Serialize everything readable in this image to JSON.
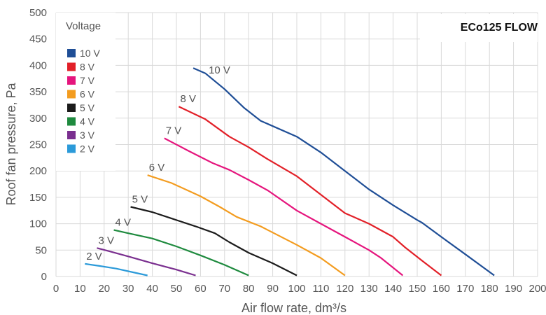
{
  "chart_data": {
    "type": "line",
    "title": "ECo125 FLOW",
    "xlabel": "Air flow rate, dm³/s",
    "ylabel": "Roof fan pressure, Pa",
    "xlim": [
      0,
      200
    ],
    "ylim": [
      0,
      500
    ],
    "xticks": [
      "0",
      "10",
      "20",
      "30",
      "40",
      "50",
      "60",
      "70",
      "80",
      "90",
      "100",
      "110",
      "120",
      "130",
      "140",
      "150",
      "160",
      "170",
      "180",
      "190",
      "200"
    ],
    "yticks": [
      "0",
      "50",
      "100",
      "150",
      "200",
      "250",
      "300",
      "350",
      "400",
      "450",
      "500"
    ],
    "grid": true,
    "legend": {
      "title": "Voltage",
      "placement": "top-left",
      "entries": [
        "10 V",
        "8 V",
        "7 V",
        "6 V",
        "5 V",
        "4 V",
        "3 V",
        "2 V"
      ]
    },
    "series": [
      {
        "name": "10 V",
        "color": "#1f4e96",
        "label": "10 V",
        "points": [
          [
            57,
            395
          ],
          [
            62,
            385
          ],
          [
            70,
            355
          ],
          [
            78,
            320
          ],
          [
            85,
            295
          ],
          [
            100,
            265
          ],
          [
            110,
            235
          ],
          [
            120,
            200
          ],
          [
            130,
            165
          ],
          [
            140,
            135
          ],
          [
            150,
            107
          ],
          [
            152,
            102
          ],
          [
            160,
            75
          ],
          [
            170,
            42
          ],
          [
            182,
            2
          ]
        ]
      },
      {
        "name": "8 V",
        "color": "#e22028",
        "label": "8 V",
        "points": [
          [
            51,
            322
          ],
          [
            62,
            298
          ],
          [
            72,
            265
          ],
          [
            80,
            245
          ],
          [
            88,
            222
          ],
          [
            100,
            190
          ],
          [
            110,
            155
          ],
          [
            120,
            120
          ],
          [
            130,
            100
          ],
          [
            140,
            75
          ],
          [
            145,
            55
          ],
          [
            152,
            30
          ],
          [
            160,
            2
          ]
        ]
      },
      {
        "name": "7 V",
        "color": "#e5157d",
        "label": "7 V",
        "points": [
          [
            45,
            262
          ],
          [
            55,
            238
          ],
          [
            65,
            215
          ],
          [
            72,
            202
          ],
          [
            80,
            183
          ],
          [
            88,
            163
          ],
          [
            100,
            125
          ],
          [
            110,
            100
          ],
          [
            120,
            75
          ],
          [
            130,
            50
          ],
          [
            135,
            35
          ],
          [
            144,
            2
          ]
        ]
      },
      {
        "name": "6 V",
        "color": "#f39c1f",
        "label": "6 V",
        "points": [
          [
            38,
            192
          ],
          [
            48,
            177
          ],
          [
            60,
            152
          ],
          [
            68,
            132
          ],
          [
            75,
            113
          ],
          [
            85,
            95
          ],
          [
            100,
            60
          ],
          [
            110,
            35
          ],
          [
            120,
            2
          ]
        ]
      },
      {
        "name": "5 V",
        "color": "#1b1b1b",
        "label": "5 V",
        "points": [
          [
            31,
            132
          ],
          [
            40,
            122
          ],
          [
            48,
            110
          ],
          [
            58,
            95
          ],
          [
            66,
            82
          ],
          [
            72,
            65
          ],
          [
            80,
            45
          ],
          [
            90,
            25
          ],
          [
            100,
            2
          ]
        ]
      },
      {
        "name": "4 V",
        "color": "#1e8a3e",
        "label": "4 V",
        "points": [
          [
            24,
            88
          ],
          [
            30,
            82
          ],
          [
            40,
            72
          ],
          [
            50,
            57
          ],
          [
            60,
            40
          ],
          [
            70,
            22
          ],
          [
            80,
            2
          ]
        ]
      },
      {
        "name": "3 V",
        "color": "#7a2f8f",
        "label": "3 V",
        "points": [
          [
            17,
            54
          ],
          [
            22,
            48
          ],
          [
            30,
            38
          ],
          [
            40,
            25
          ],
          [
            50,
            13
          ],
          [
            58,
            2
          ]
        ]
      },
      {
        "name": "2 V",
        "color": "#2b9ad9",
        "label": "2 V",
        "points": [
          [
            12,
            24
          ],
          [
            18,
            20
          ],
          [
            25,
            15
          ],
          [
            32,
            8
          ],
          [
            38,
            2
          ]
        ]
      }
    ]
  }
}
